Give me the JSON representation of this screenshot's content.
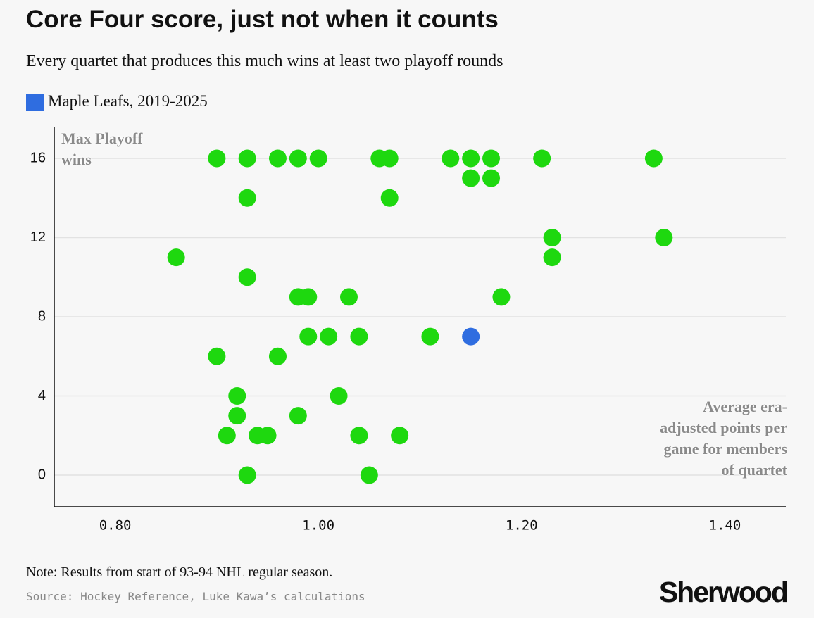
{
  "chart_data": {
    "type": "scatter",
    "title": "Core Four score, just not when it counts",
    "subtitle": "Every quartet that produces this much wins at least two playoff rounds",
    "y_label": "Max Playoff wins",
    "x_label": "Average era-adjusted points per game for members of quartet",
    "note": "Note: Results from start of 93-94 NHL regular season.",
    "source": "Source: Hockey Reference, Luke Kawa’s calculations",
    "logo": "Sherwood",
    "xlim": [
      0.74,
      1.46
    ],
    "ylim": [
      -1.6,
      17.6
    ],
    "xticks": [
      {
        "value": 0.8,
        "label": "0.80"
      },
      {
        "value": 1.0,
        "label": "1.00"
      },
      {
        "value": 1.2,
        "label": "1.20"
      },
      {
        "value": 1.4,
        "label": "1.40"
      }
    ],
    "yticks": [
      0,
      4,
      8,
      12,
      16
    ],
    "grid": true,
    "series": [
      {
        "color": "#1ed80f",
        "x": [
          0.9,
          0.93,
          0.96,
          0.98,
          1.0,
          1.06,
          1.07,
          1.13,
          1.15,
          1.17,
          1.22,
          1.33,
          1.15,
          1.17,
          0.93,
          1.07,
          1.23,
          1.34,
          0.86,
          1.23,
          0.93,
          0.98,
          0.99,
          1.03,
          1.18,
          0.99,
          1.01,
          1.04,
          1.11,
          0.9,
          0.96,
          0.92,
          1.02,
          0.92,
          0.98,
          0.91,
          0.94,
          0.95,
          1.04,
          1.08,
          0.93,
          1.05
        ],
        "values": [
          16,
          16,
          16,
          16,
          16,
          16,
          16,
          16,
          16,
          16,
          16,
          16,
          15,
          15,
          14,
          14,
          12,
          12,
          11,
          11,
          10,
          9,
          9,
          9,
          9,
          7,
          7,
          7,
          7,
          6,
          6,
          4,
          4,
          3,
          3,
          2,
          2,
          2,
          2,
          2,
          0,
          0
        ]
      },
      {
        "name": "Maple Leafs, 2019-2025",
        "color": "#2f6de0",
        "x": [
          1.15
        ],
        "values": [
          7
        ]
      }
    ]
  }
}
